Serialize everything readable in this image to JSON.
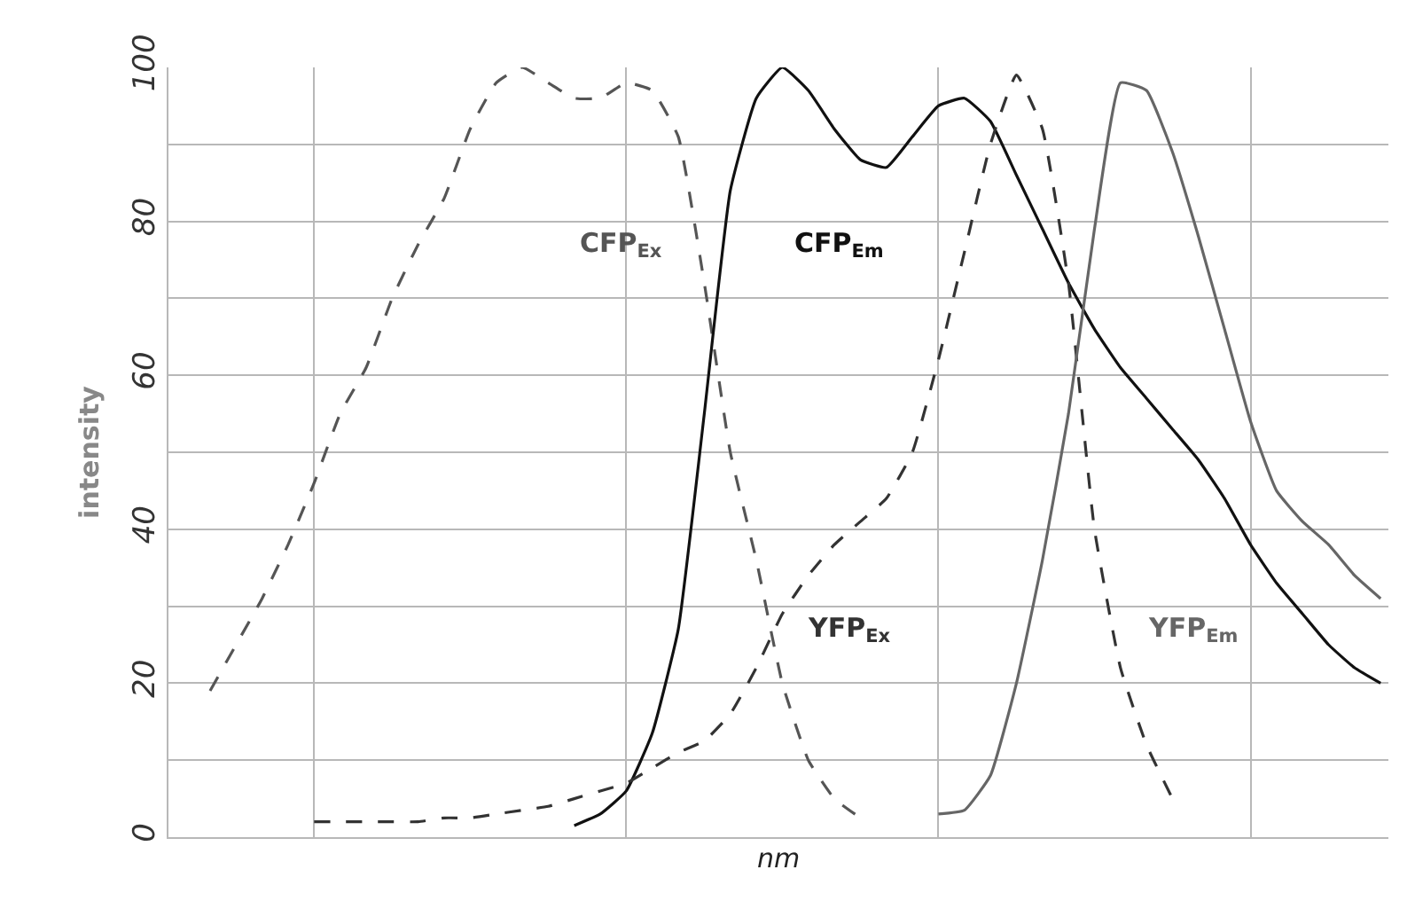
{
  "chart_data": {
    "type": "line",
    "xlabel": "nm",
    "ylabel": "intensity",
    "categories": [
      null,
      null,
      null,
      null,
      null,
      null,
      null,
      null,
      null,
      null,
      null,
      null,
      null,
      null,
      null,
      null,
      null,
      null,
      null,
      null,
      null,
      null,
      null,
      null,
      null,
      null,
      null,
      null,
      null,
      null,
      null,
      null,
      null,
      null,
      null,
      null,
      null,
      null,
      null,
      null,
      null,
      null,
      null,
      null,
      null,
      null,
      null,
      null
    ],
    "series": [
      {
        "name": "CFP$_{Ex}$",
        "color": "#555555",
        "line_style": "dashed",
        "values": [
          null,
          null,
          19,
          25,
          31,
          38,
          46,
          55,
          61,
          70,
          77,
          83,
          92,
          98,
          100,
          98,
          96,
          96,
          98,
          97,
          91,
          72,
          50,
          36,
          20,
          10,
          5,
          2.5,
          null,
          null,
          null,
          null,
          null,
          null,
          null,
          null,
          null,
          null,
          null,
          null,
          null,
          null,
          null,
          null,
          null,
          null,
          null,
          null
        ]
      },
      {
        "name": "CFP$_{Em}$",
        "color": "#111111",
        "line_style": "solid",
        "values": [
          null,
          null,
          null,
          null,
          null,
          null,
          null,
          null,
          null,
          null,
          null,
          null,
          null,
          null,
          null,
          null,
          1.5,
          3,
          6,
          13.5,
          27,
          55,
          84,
          96,
          100,
          97,
          92,
          88,
          87,
          91,
          95,
          96,
          93,
          86,
          79,
          72,
          66,
          61,
          57,
          53,
          49,
          44,
          38,
          33,
          29,
          25,
          22,
          20
        ]
      },
      {
        "name": "YFP$_{Ex}$",
        "color": "#333333",
        "line_style": "dashed",
        "values": [
          null,
          null,
          null,
          null,
          null,
          null,
          2,
          2,
          2,
          2,
          2,
          2.5,
          2.5,
          3,
          3.5,
          4,
          5,
          6,
          7,
          9,
          11,
          12.5,
          16,
          22,
          29,
          34,
          38,
          41,
          44,
          50,
          62,
          76,
          90,
          99,
          92,
          72,
          40,
          22,
          12,
          5,
          null,
          null,
          null,
          null,
          null,
          null,
          null,
          null
        ]
      },
      {
        "name": "YFP$_{Em}$",
        "color": "#666666",
        "line_style": "solid",
        "values": [
          null,
          null,
          null,
          null,
          null,
          null,
          null,
          null,
          null,
          null,
          null,
          null,
          null,
          null,
          null,
          null,
          null,
          null,
          null,
          null,
          null,
          null,
          null,
          null,
          null,
          null,
          null,
          null,
          null,
          null,
          3,
          3.5,
          8,
          20,
          36,
          55,
          79,
          98,
          97,
          89,
          78,
          66,
          54,
          45,
          41,
          38,
          34,
          31
        ]
      }
    ],
    "ylim": [
      0,
      100
    ],
    "yticks": [
      0,
      {
        "value": 10,
        "label": null
      },
      20,
      {
        "value": 30,
        "label": null
      },
      40,
      {
        "value": 50,
        "label": null
      },
      60,
      {
        "value": 70,
        "label": null
      },
      80,
      {
        "value": 90,
        "label": null
      },
      100
    ],
    "grid": true,
    "tick_labels": "y",
    "marker": "none"
  }
}
